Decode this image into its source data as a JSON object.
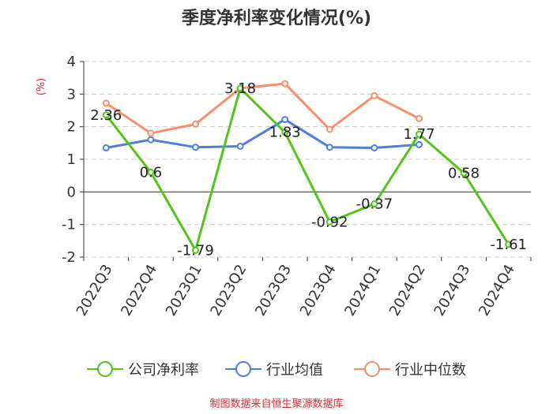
{
  "chart_data": {
    "type": "line",
    "title": "季度净利率变化情况(%)",
    "ylabel": "(%)",
    "ylim": [
      -2,
      4
    ],
    "yticks": [
      -2,
      -1,
      0,
      1,
      2,
      3,
      4
    ],
    "grid": true,
    "legend_position": "bottom",
    "categories": [
      "2022Q3",
      "2022Q4",
      "2023Q1",
      "2023Q2",
      "2023Q3",
      "2023Q4",
      "2024Q1",
      "2024Q2",
      "2024Q3",
      "2024Q4"
    ],
    "series": [
      {
        "name": "公司净利率",
        "color": "#52c41a",
        "values": [
          2.36,
          0.6,
          -1.79,
          3.18,
          1.83,
          -0.92,
          -0.37,
          1.77,
          0.58,
          -1.61
        ],
        "data_labels": [
          "2.36",
          "0.6",
          "-1.79",
          "3.18",
          "1.83",
          "-0.92",
          "-0.37",
          "1.77",
          "0.58",
          "-1.61"
        ]
      },
      {
        "name": "行业均值",
        "color": "#4e7fe0",
        "values": [
          1.35,
          1.6,
          1.37,
          1.4,
          2.22,
          1.37,
          1.35,
          1.45,
          null,
          null
        ]
      },
      {
        "name": "行业中位数",
        "color": "#f5906b",
        "values": [
          2.72,
          1.8,
          2.08,
          3.18,
          3.32,
          1.92,
          2.95,
          2.25,
          null,
          null
        ]
      }
    ],
    "source": "制图数据来自恒生聚源数据库"
  }
}
